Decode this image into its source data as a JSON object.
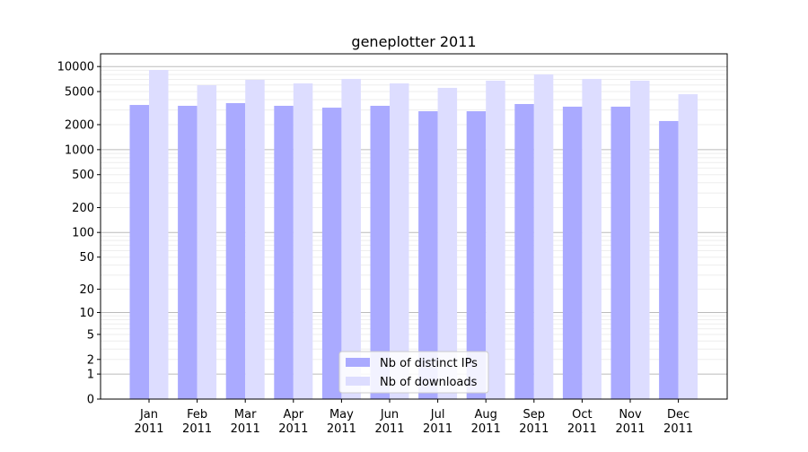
{
  "chart_data": {
    "type": "bar",
    "title": "geneplotter 2011",
    "xlabel": "",
    "ylabel": "",
    "yscale": "log(y+1)",
    "ylim": [
      0,
      14000
    ],
    "yticks": [
      0,
      1,
      2,
      5,
      10,
      20,
      50,
      100,
      200,
      500,
      1000,
      2000,
      5000,
      10000
    ],
    "grid": true,
    "legend_position": "bottom-center",
    "categories": [
      "Jan\n2011",
      "Feb\n2011",
      "Mar\n2011",
      "Apr\n2011",
      "May\n2011",
      "Jun\n2011",
      "Jul\n2011",
      "Aug\n2011",
      "Sep\n2011",
      "Oct\n2011",
      "Nov\n2011",
      "Dec\n2011"
    ],
    "series": [
      {
        "name": "Nb of distinct IPs",
        "color": "#aaaaff",
        "values": [
          3450,
          3370,
          3630,
          3370,
          3200,
          3370,
          2900,
          2900,
          3540,
          3290,
          3290,
          2210
        ]
      },
      {
        "name": "Nb of downloads",
        "color": "#ddddff",
        "values": [
          9100,
          5970,
          6920,
          6270,
          7100,
          6270,
          5540,
          6760,
          8040,
          7100,
          6760,
          4650
        ]
      }
    ]
  }
}
